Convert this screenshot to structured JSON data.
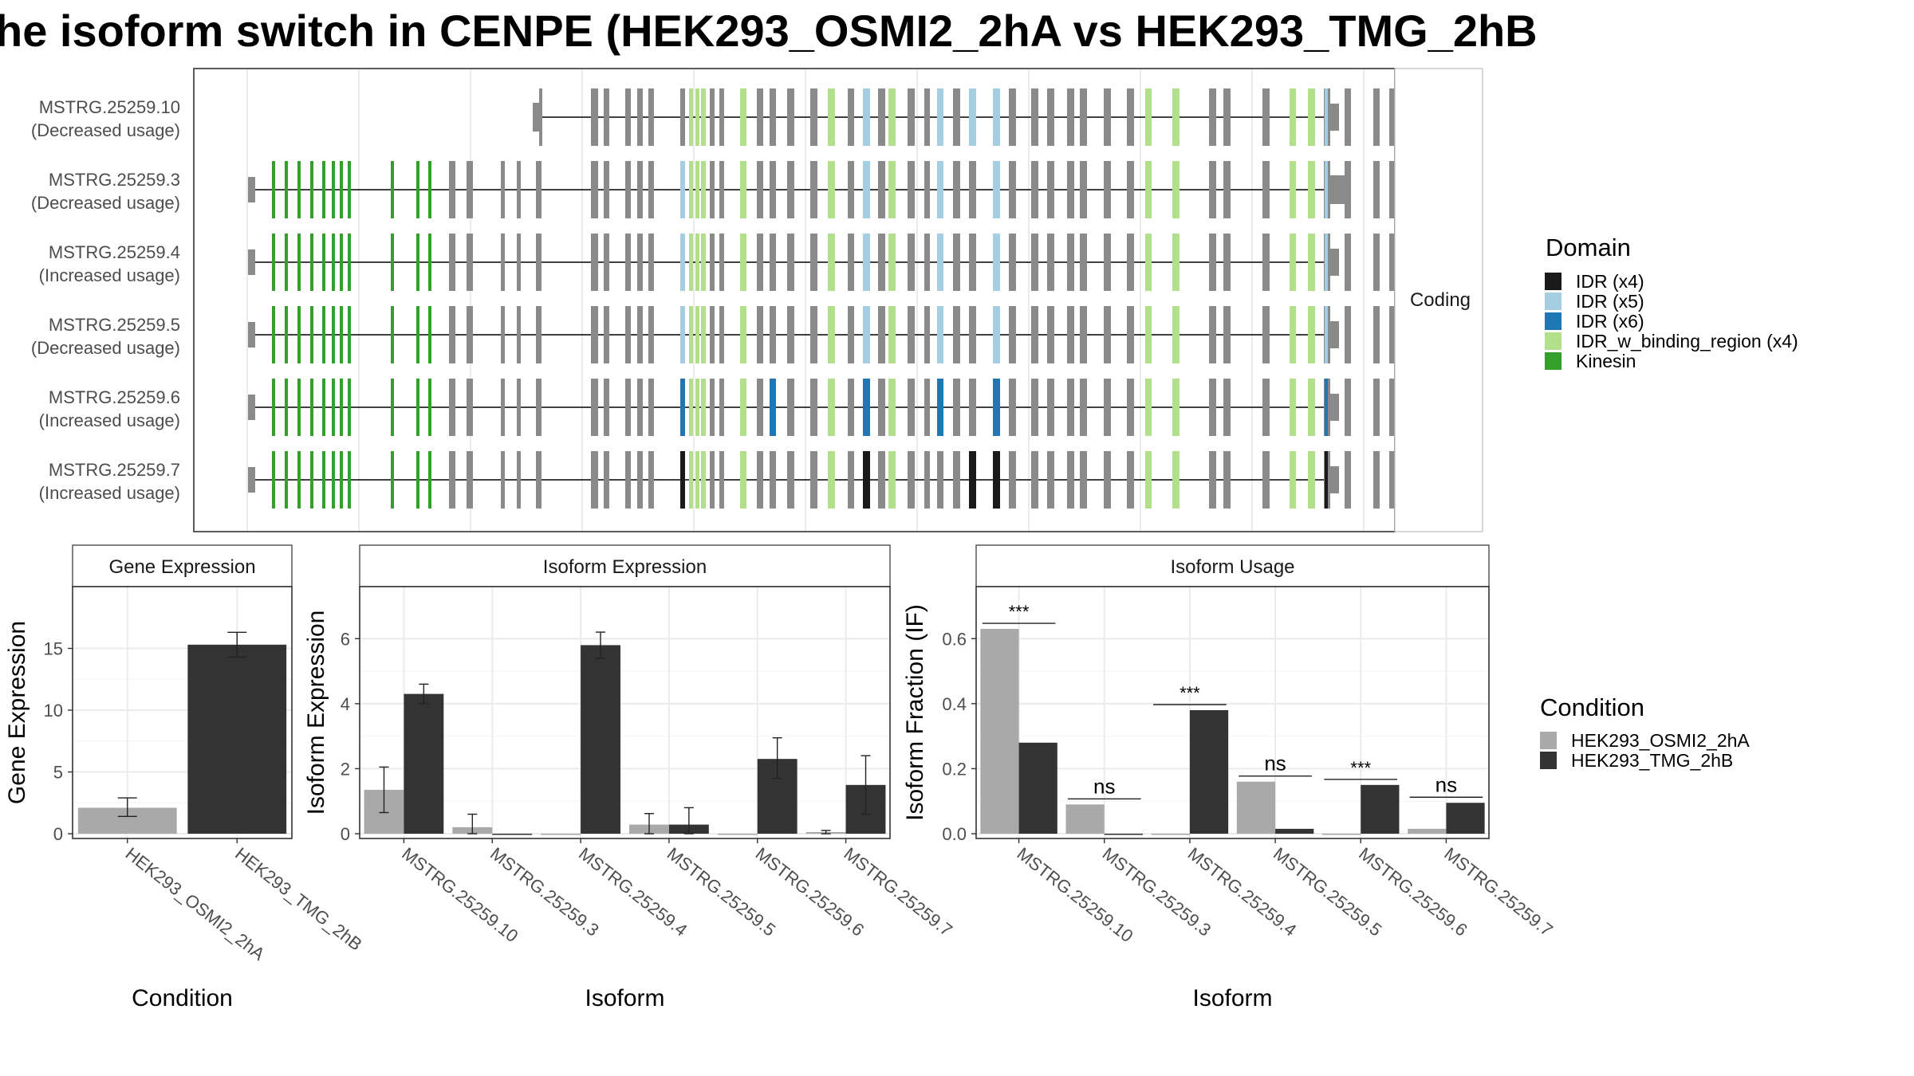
{
  "title": "he isoform switch in CENPE (HEK293_OSMI2_2hA vs HEK293_TMG_2hB",
  "colors": {
    "intron": "#000000",
    "exon_plain": "#8a8a8a",
    "idr_x4": "#1a1a1a",
    "idr_x5": "#a6cee3",
    "idr_x6": "#1f78b4",
    "idr_binding": "#b2df8a",
    "kinesin": "#33a02c",
    "cond_a": "#a9a9a9",
    "cond_b": "#333333",
    "grid": "#ebebeb"
  },
  "transcript_panel": {
    "strip_label": "Coding",
    "isoforms": [
      {
        "id": "MSTRG.25259.10",
        "usage": "(Decreased usage)"
      },
      {
        "id": "MSTRG.25259.3",
        "usage": "(Decreased usage)"
      },
      {
        "id": "MSTRG.25259.4",
        "usage": "(Increased usage)"
      },
      {
        "id": "MSTRG.25259.5",
        "usage": "(Decreased usage)"
      },
      {
        "id": "MSTRG.25259.6",
        "usage": "(Increased usage)"
      },
      {
        "id": "MSTRG.25259.7",
        "usage": "(Increased usage)"
      }
    ]
  },
  "domain_legend": {
    "title": "Domain",
    "items": [
      {
        "label": "IDR (x4)",
        "color": "#1a1a1a"
      },
      {
        "label": "IDR (x5)",
        "color": "#a6cee3"
      },
      {
        "label": "IDR (x6)",
        "color": "#1f78b4"
      },
      {
        "label": "IDR_w_binding_region (x4)",
        "color": "#b2df8a"
      },
      {
        "label": "Kinesin",
        "color": "#33a02c"
      }
    ]
  },
  "condition_legend": {
    "title": "Condition",
    "items": [
      {
        "label": "HEK293_OSMI2_2hA",
        "color": "#a9a9a9"
      },
      {
        "label": "HEK293_TMG_2hB",
        "color": "#333333"
      }
    ]
  },
  "chart_data": [
    {
      "type": "bar",
      "panel": "Gene Expression",
      "xlabel": "Condition",
      "ylabel": "Gene Expression",
      "ylim": [
        0,
        20
      ],
      "yticks": [
        0,
        5,
        10,
        15
      ],
      "categories": [
        "HEK293_OSMI2_2hA",
        "HEK293_TMG_2hB"
      ],
      "values": [
        2.1,
        15.3
      ],
      "error": [
        [
          1.4,
          2.9
        ],
        [
          14.3,
          16.3
        ]
      ]
    },
    {
      "type": "bar",
      "panel": "Isoform Expression",
      "xlabel": "Isoform",
      "ylabel": "Isoform Expression",
      "ylim": [
        0,
        7.6
      ],
      "yticks": [
        0,
        2,
        4,
        6
      ],
      "categories": [
        "MSTRG.25259.10",
        "MSTRG.25259.3",
        "MSTRG.25259.4",
        "MSTRG.25259.5",
        "MSTRG.25259.6",
        "MSTRG.25259.7"
      ],
      "series": [
        {
          "name": "HEK293_OSMI2_2hA",
          "values": [
            1.35,
            0.2,
            0.0,
            0.28,
            0.0,
            0.05
          ],
          "error": [
            [
              0.65,
              2.05
            ],
            [
              0.0,
              0.6
            ],
            [
              0.0,
              0.0
            ],
            [
              0.0,
              0.62
            ],
            [
              0.0,
              0.0
            ],
            [
              0.0,
              0.1
            ]
          ]
        },
        {
          "name": "HEK293_TMG_2hB",
          "values": [
            4.3,
            0.0,
            5.8,
            0.28,
            2.3,
            1.5
          ],
          "error": [
            [
              4.0,
              4.6
            ],
            [
              0.0,
              0.0
            ],
            [
              5.4,
              6.2
            ],
            [
              0.0,
              0.8
            ],
            [
              1.7,
              2.95
            ],
            [
              0.6,
              2.4
            ]
          ]
        }
      ]
    },
    {
      "type": "bar",
      "panel": "Isoform Usage",
      "xlabel": "Isoform",
      "ylabel": "Isoform Fraction (IF)",
      "ylim": [
        0,
        0.76
      ],
      "yticks": [
        0.0,
        0.2,
        0.4,
        0.6
      ],
      "categories": [
        "MSTRG.25259.10",
        "MSTRG.25259.3",
        "MSTRG.25259.4",
        "MSTRG.25259.5",
        "MSTRG.25259.6",
        "MSTRG.25259.7"
      ],
      "series": [
        {
          "name": "HEK293_OSMI2_2hA",
          "values": [
            0.63,
            0.09,
            0.0,
            0.16,
            0.0,
            0.015
          ]
        },
        {
          "name": "HEK293_TMG_2hB",
          "values": [
            0.28,
            0.0,
            0.38,
            0.015,
            0.15,
            0.095
          ]
        }
      ],
      "significance": [
        "***",
        "ns",
        "***",
        "ns",
        "***",
        "ns"
      ]
    }
  ]
}
